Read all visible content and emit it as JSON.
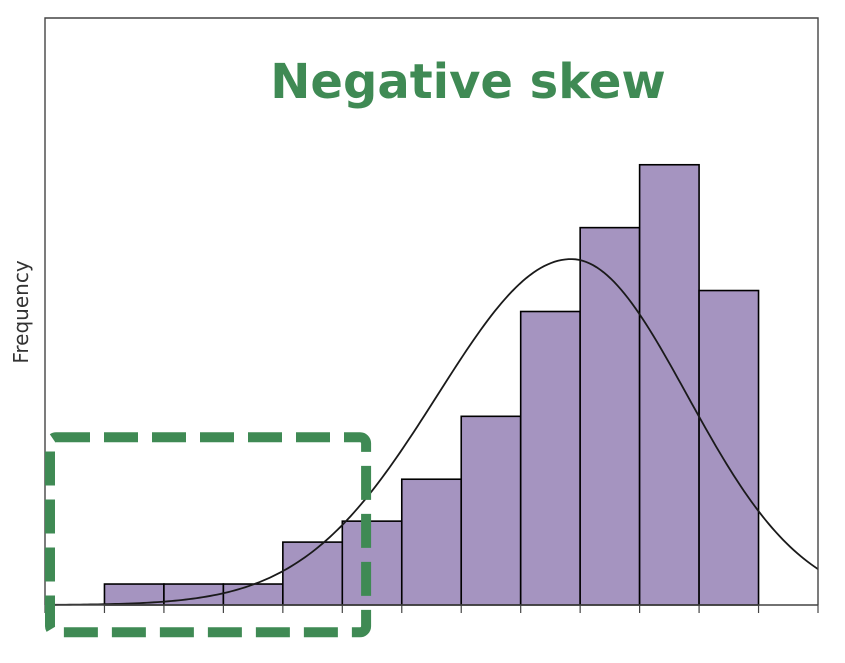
{
  "chart_data": {
    "type": "bar",
    "title": "Negative skew",
    "xlabel": "",
    "ylabel": "Frequency",
    "bins": [
      {
        "start": 1,
        "end": 2,
        "value": 1
      },
      {
        "start": 2,
        "end": 3,
        "value": 1
      },
      {
        "start": 3,
        "end": 4,
        "value": 1
      },
      {
        "start": 4,
        "end": 5,
        "value": 3
      },
      {
        "start": 5,
        "end": 6,
        "value": 4
      },
      {
        "start": 6,
        "end": 7,
        "value": 6
      },
      {
        "start": 7,
        "end": 8,
        "value": 9
      },
      {
        "start": 8,
        "end": 9,
        "value": 14
      },
      {
        "start": 9,
        "end": 10,
        "value": 18
      },
      {
        "start": 10,
        "end": 11,
        "value": 21
      },
      {
        "start": 11,
        "end": 12,
        "value": 15
      }
    ],
    "xlim": [
      0,
      13
    ],
    "ylim": [
      0,
      28
    ],
    "overlay": {
      "type": "normal-curve",
      "peak_x": 8.85,
      "peak_y": 16.5
    },
    "highlight": {
      "type": "dashed-rectangle",
      "x_range": [
        0,
        5.4
      ],
      "y_range": [
        -1.3,
        8
      ],
      "note": "left tail region"
    },
    "colors": {
      "bar_fill": "#A594C0",
      "bar_stroke": "#000000",
      "curve": "#1a1a1a",
      "title": "#3F8A54",
      "highlight": "#3F8A54"
    },
    "grid": false,
    "legend": "none"
  }
}
